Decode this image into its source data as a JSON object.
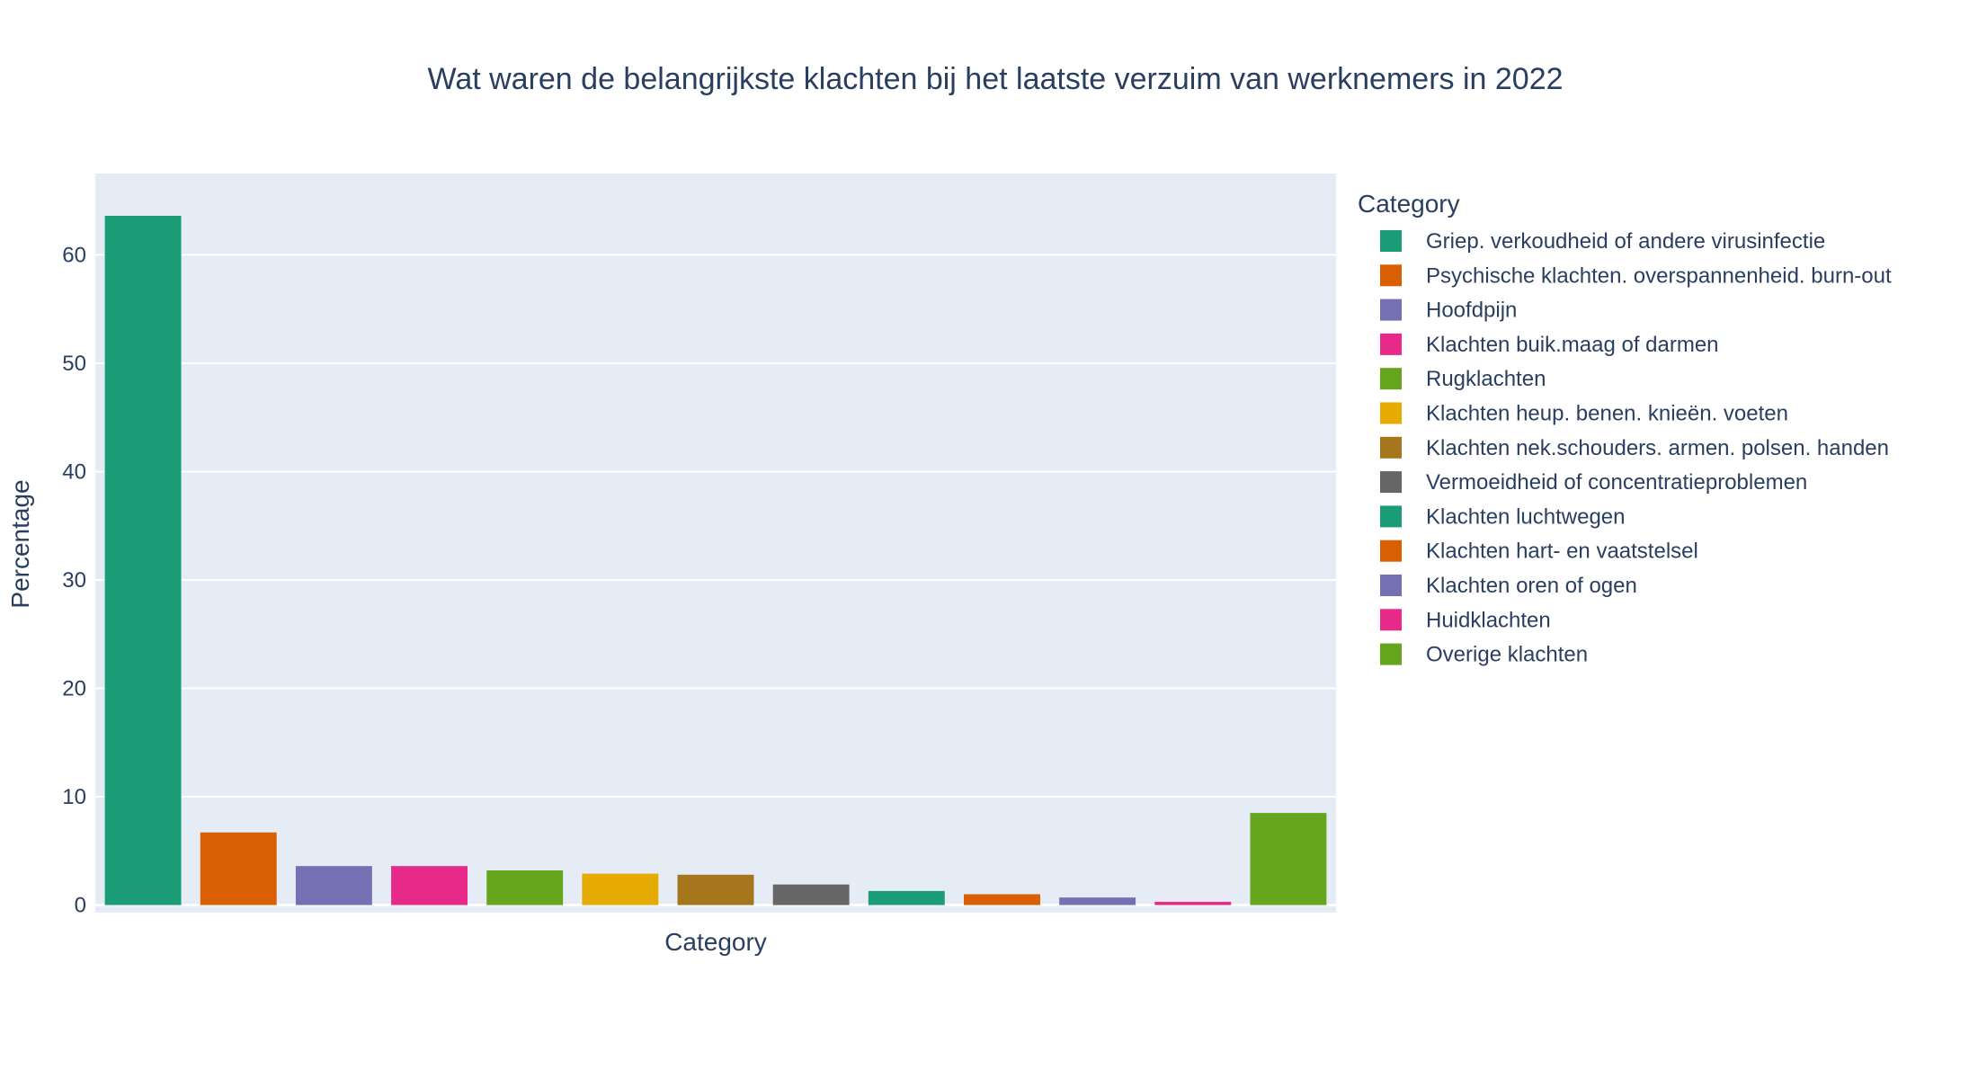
{
  "chart_data": {
    "type": "bar",
    "title": "Wat waren de belangrijkste klachten bij het laatste verzuim van werknemers in 2022",
    "xlabel": "Category",
    "ylabel": "Percentage",
    "ylim": [
      -0.7,
      67.5
    ],
    "yticks": [
      0,
      10,
      20,
      30,
      40,
      50,
      60
    ],
    "grid": true,
    "legend_title": "Category",
    "legend_position": "right",
    "background_color": "#e5ecf6",
    "categories": [
      "Griep. verkoudheid of andere virusinfectie",
      "Psychische klachten. overspannenheid. burn-out",
      "Hoofdpijn",
      "Klachten buik.maag of darmen",
      "Rugklachten",
      "Klachten heup. benen. knieën. voeten",
      "Klachten nek.schouders. armen. polsen. handen",
      "Vermoeidheid of concentratieproblemen",
      "Klachten luchtwegen",
      "Klachten hart- en vaatstelsel",
      "Klachten oren of ogen",
      "Huidklachten",
      "Overige klachten"
    ],
    "values": [
      63.6,
      6.7,
      3.6,
      3.6,
      3.2,
      2.9,
      2.8,
      1.9,
      1.3,
      1.0,
      0.7,
      0.3,
      8.5
    ],
    "colors": [
      "#1b9e77",
      "#d95f02",
      "#7570b3",
      "#e7298a",
      "#66a61e",
      "#e6ab02",
      "#a6761d",
      "#666666",
      "#1b9e77",
      "#d95f02",
      "#7570b3",
      "#e7298a",
      "#66a61e"
    ]
  }
}
